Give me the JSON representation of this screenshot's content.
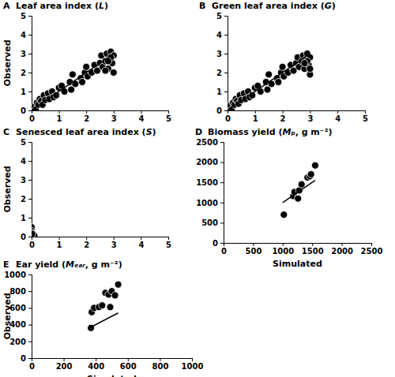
{
  "chart_data": [
    {
      "type": "scatter",
      "panel": "A",
      "title": "Leaf area index (L)",
      "ylabel": "Observed",
      "xlim": [
        0,
        5
      ],
      "ylim": [
        0,
        5
      ],
      "xticks": [
        0,
        1,
        2,
        3,
        4,
        5
      ],
      "yticks": [
        0,
        1,
        2,
        3,
        4,
        5
      ],
      "series": [
        {
          "type": "scatter",
          "marker": "circle",
          "color": "#000000",
          "x": [
            0.05,
            0.1,
            0.15,
            0.2,
            0.25,
            0.3,
            0.35,
            0.4,
            0.45,
            0.5,
            0.6,
            0.65,
            0.75,
            0.8,
            0.9,
            1.0,
            1.1,
            1.2,
            1.4,
            1.45,
            1.5,
            1.6,
            1.8,
            1.85,
            1.95,
            2.0,
            2.05,
            2.2,
            2.3,
            2.4,
            2.5,
            2.55,
            2.6,
            2.7,
            2.75,
            2.8,
            2.85,
            2.9,
            2.95,
            3.0,
            3.0,
            2.9,
            2.8,
            2.7
          ],
          "values": [
            0.1,
            0.2,
            0.05,
            0.4,
            0.3,
            0.6,
            0.5,
            0.3,
            0.8,
            0.55,
            0.9,
            0.6,
            1.0,
            0.7,
            0.8,
            1.2,
            1.3,
            1.0,
            1.5,
            1.1,
            1.9,
            1.4,
            1.7,
            1.5,
            2.0,
            2.3,
            1.8,
            2.0,
            2.4,
            2.1,
            2.5,
            2.9,
            2.3,
            2.6,
            3.0,
            2.2,
            2.7,
            3.1,
            2.5,
            2.0,
            2.9,
            2.8,
            2.6,
            2.1
          ]
        },
        {
          "type": "line",
          "line_style": "solid",
          "color": "#000000",
          "x": [
            0,
            3
          ],
          "values": [
            0,
            3
          ]
        }
      ]
    },
    {
      "type": "scatter",
      "panel": "B",
      "title": "Green leaf area index (G)",
      "xlim": [
        0,
        5
      ],
      "ylim": [
        0,
        5
      ],
      "xticks": [
        0,
        1,
        2,
        3,
        4,
        5
      ],
      "yticks": [
        0,
        1,
        2,
        3,
        4,
        5
      ],
      "series": [
        {
          "type": "scatter",
          "marker": "circle",
          "color": "#000000",
          "x": [
            0.05,
            0.1,
            0.15,
            0.2,
            0.25,
            0.3,
            0.35,
            0.4,
            0.45,
            0.5,
            0.6,
            0.65,
            0.75,
            0.8,
            0.9,
            1.0,
            1.1,
            1.2,
            1.4,
            1.45,
            1.5,
            1.6,
            1.8,
            1.85,
            1.95,
            2.0,
            2.05,
            2.2,
            2.3,
            2.4,
            2.5,
            2.55,
            2.6,
            2.7,
            2.75,
            2.8,
            2.85,
            2.9,
            2.95,
            3.0,
            3.0,
            2.9,
            2.8,
            3.0
          ],
          "values": [
            0.1,
            0.25,
            0.05,
            0.4,
            0.3,
            0.6,
            0.5,
            0.35,
            0.8,
            0.55,
            0.9,
            0.6,
            1.0,
            0.7,
            0.8,
            1.2,
            1.3,
            1.0,
            1.5,
            1.1,
            1.9,
            1.4,
            1.7,
            1.5,
            2.0,
            2.3,
            1.8,
            2.0,
            2.4,
            2.1,
            2.5,
            2.8,
            2.3,
            2.6,
            2.9,
            2.2,
            2.7,
            3.0,
            2.4,
            1.9,
            2.8,
            2.6,
            2.5,
            2.2
          ]
        },
        {
          "type": "line",
          "line_style": "solid",
          "color": "#000000",
          "x": [
            0,
            3
          ],
          "values": [
            0,
            3
          ]
        }
      ]
    },
    {
      "type": "scatter",
      "panel": "C",
      "title": "Senesced leaf area index (S)",
      "ylabel": "Observed",
      "xlim": [
        0,
        5
      ],
      "ylim": [
        0,
        5
      ],
      "xticks": [
        0,
        1,
        2,
        3,
        4,
        5
      ],
      "yticks": [
        0,
        1,
        2,
        3,
        4,
        5
      ],
      "series": [
        {
          "type": "scatter",
          "marker": "circle",
          "color": "#000000",
          "x": [
            0,
            0,
            0,
            0.05,
            0.1,
            0,
            0.02
          ],
          "values": [
            0.5,
            0.3,
            0.2,
            0.1,
            0.05,
            0,
            0.15
          ]
        }
      ]
    },
    {
      "type": "scatter",
      "panel": "D",
      "title": "Biomass yield (Mₚ, g m⁻²)",
      "xlabel": "Simulated",
      "xlim": [
        0,
        2500
      ],
      "ylim": [
        0,
        2500
      ],
      "xticks": [
        0,
        500,
        1000,
        1500,
        2000,
        2500
      ],
      "yticks": [
        0,
        500,
        1000,
        1500,
        2000,
        2500
      ],
      "series": [
        {
          "type": "scatter",
          "marker": "circle",
          "color": "#000000",
          "x": [
            1020,
            1180,
            1200,
            1260,
            1280,
            1320,
            1420,
            1460,
            1480,
            1550
          ],
          "values": [
            700,
            1160,
            1260,
            1100,
            1300,
            1450,
            1620,
            1650,
            1700,
            1920
          ]
        },
        {
          "type": "line",
          "line_style": "solid",
          "color": "#000000",
          "x": [
            1000,
            1550
          ],
          "values": [
            1000,
            1550
          ]
        }
      ]
    },
    {
      "type": "scatter",
      "panel": "E",
      "title": "Ear yield (Mₑₐᵣ, g m⁻²)",
      "xlabel": "Simulated",
      "ylabel": "Observed",
      "xlim": [
        0,
        1000
      ],
      "ylim": [
        0,
        1000
      ],
      "xticks": [
        0,
        200,
        400,
        600,
        800,
        1000
      ],
      "yticks": [
        0,
        200,
        400,
        600,
        800,
        1000
      ],
      "series": [
        {
          "type": "scatter",
          "marker": "circle",
          "color": "#000000",
          "x": [
            370,
            375,
            390,
            420,
            440,
            460,
            480,
            490,
            500,
            520,
            540
          ],
          "values": [
            360,
            550,
            600,
            610,
            630,
            780,
            760,
            610,
            800,
            750,
            880
          ]
        },
        {
          "type": "line",
          "line_style": "solid",
          "color": "#000000",
          "x": [
            370,
            540
          ],
          "values": [
            370,
            540
          ]
        }
      ]
    }
  ]
}
